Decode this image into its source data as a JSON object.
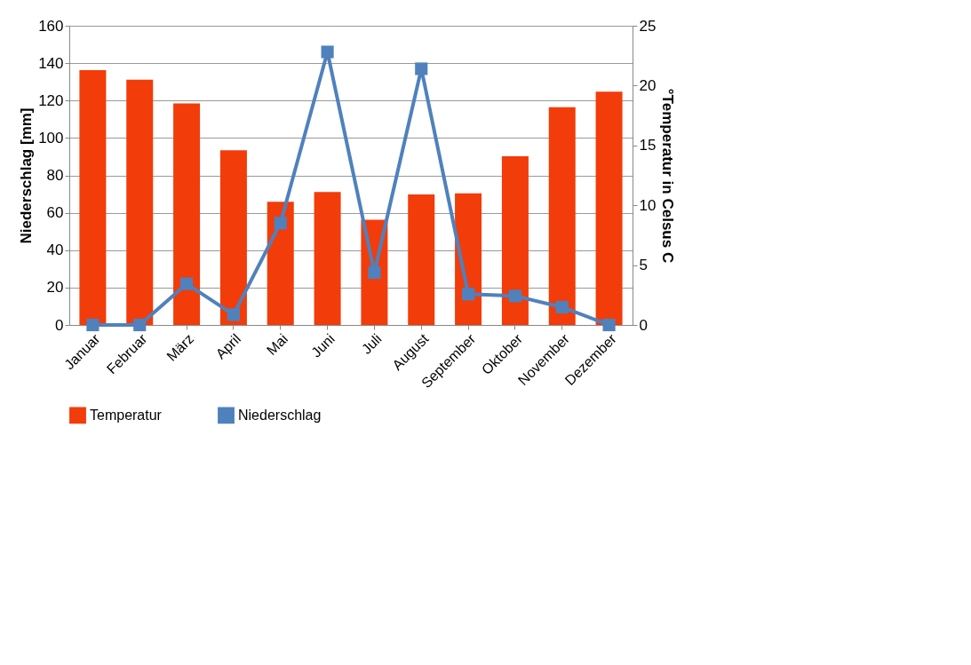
{
  "chart_data": {
    "type": "bar",
    "ylabel": "Niederschlag [mm]",
    "y2label": "°Temperatur in Celsus C",
    "categories": [
      "Januar",
      "Februar",
      "März",
      "April",
      "Mai",
      "Juni",
      "Juli",
      "August",
      "September",
      "Oktober",
      "November",
      "Dezember"
    ],
    "series": [
      {
        "name": "Temperatur",
        "axis": "y2",
        "color": "#f23c0a",
        "values": [
          21.3,
          20.5,
          18.5,
          14.6,
          10.3,
          11.1,
          8.8,
          10.9,
          11.0,
          14.1,
          18.2,
          19.5
        ]
      },
      {
        "name": "Niederschlag",
        "type": "line",
        "axis": "y",
        "color": "#4f81bd",
        "values": [
          0,
          0,
          22,
          5.5,
          54.5,
          146,
          28,
          137,
          16.5,
          15.5,
          9.5,
          0
        ]
      }
    ],
    "ylim": [
      0,
      160
    ],
    "yticks": [
      0,
      20,
      40,
      60,
      80,
      100,
      120,
      140,
      160
    ],
    "y2lim": [
      0,
      25
    ],
    "y2ticks": [
      0,
      5,
      10,
      15,
      20,
      25
    ],
    "grid": "y",
    "legend": "bottom left",
    "marker": "square",
    "line_style": "solid"
  }
}
